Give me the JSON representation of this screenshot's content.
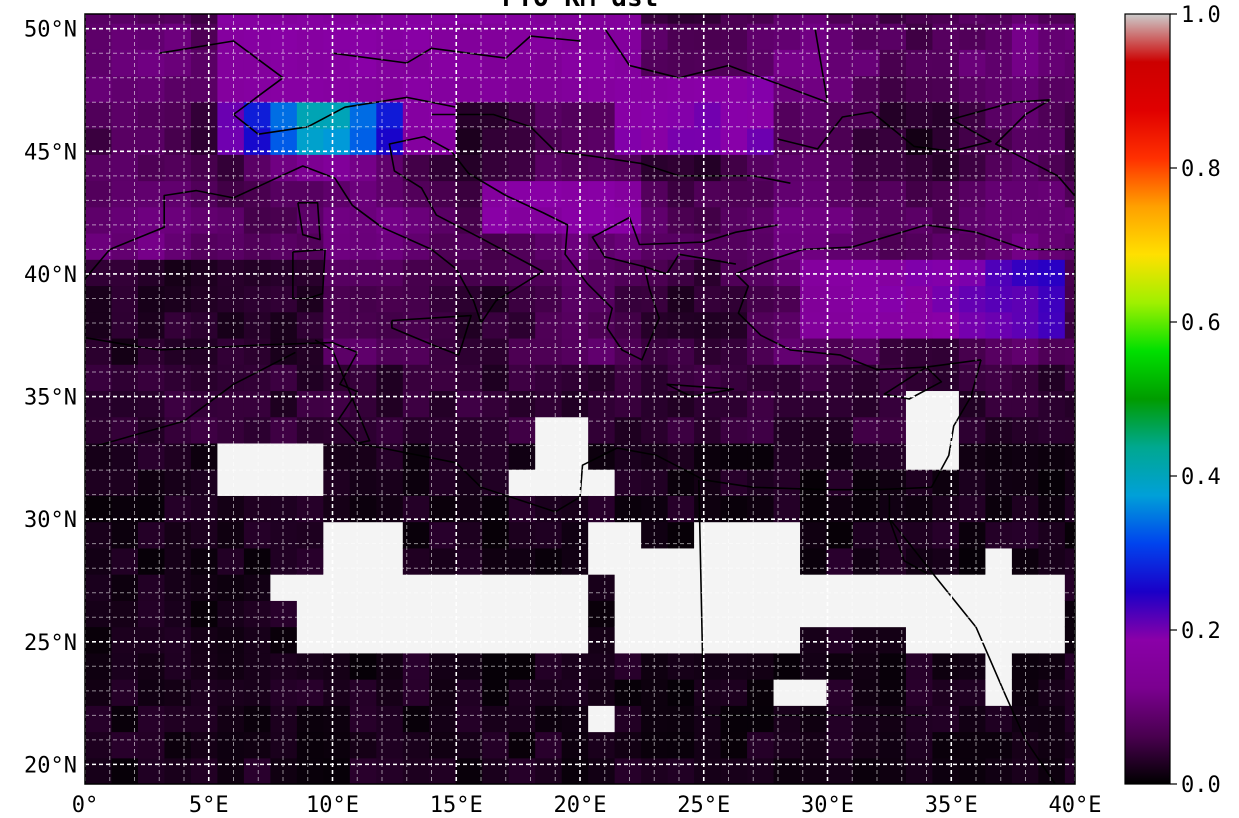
{
  "title": "FTO KM dst",
  "colors": {
    "nodata": "#f4f4f4",
    "grid": "#ffffff",
    "coast": "#000000",
    "colormap": [
      "#000000",
      "#4a0050",
      "#7b0090",
      "#8a00a8",
      "#1a00c8",
      "#0044ee",
      "#00a0d8",
      "#00a890",
      "#009c00",
      "#00e000",
      "#a0f000",
      "#ffe000",
      "#ffa000",
      "#ff3000",
      "#e00000",
      "#cc0000",
      "#cccccc"
    ]
  },
  "map": {
    "lon_range": [
      0,
      40
    ],
    "lat_range": [
      19.2,
      50.6
    ],
    "lon_labels": [
      "0°",
      "5°E",
      "10°E",
      "15°E",
      "20°E",
      "25°E",
      "30°E",
      "35°E",
      "40°E"
    ],
    "lat_labels": [
      "20°N",
      "25°N",
      "30°N",
      "35°N",
      "40°N",
      "45°N",
      "50°N"
    ]
  },
  "colorbar": {
    "range": [
      0.0,
      1.0
    ],
    "tick_labels": [
      "0.0",
      "0.2",
      "0.4",
      "0.6",
      "0.8",
      "1.0"
    ]
  }
}
